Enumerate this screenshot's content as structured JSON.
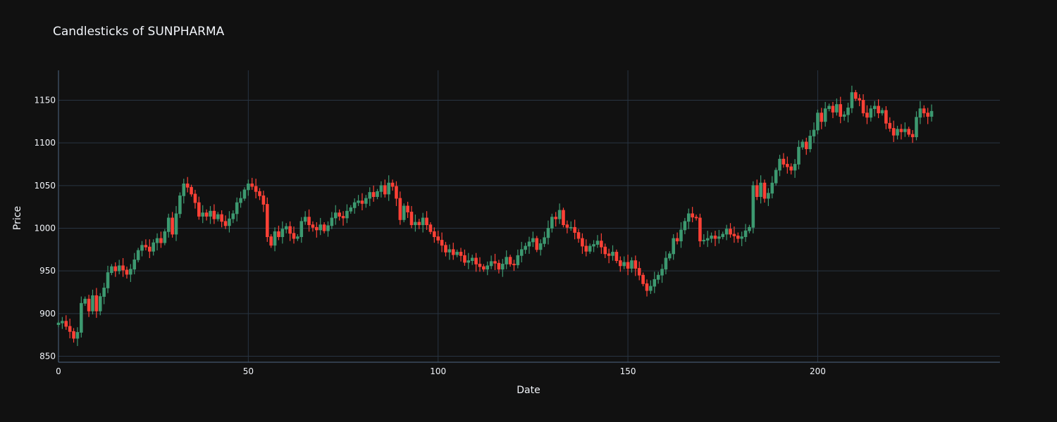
{
  "chart_data": {
    "type": "candlestick",
    "title": "Candlesticks of SUNPHARMA",
    "xlabel": "Date",
    "ylabel": "Price",
    "xlim": [
      0,
      248
    ],
    "ylim": [
      843,
      1185
    ],
    "x_ticks": [
      0,
      50,
      100,
      150,
      200
    ],
    "y_ticks": [
      850,
      900,
      950,
      1000,
      1050,
      1100,
      1150
    ],
    "grid": true,
    "colors": {
      "background": "#111111",
      "increasing": "#3d9970",
      "decreasing": "#ff4136",
      "grid": "#283442",
      "text": "#f2f5fa"
    },
    "closes": [
      889,
      891,
      885,
      879,
      871,
      878,
      912,
      917,
      903,
      921,
      903,
      920,
      930,
      948,
      955,
      950,
      956,
      951,
      946,
      952,
      963,
      974,
      980,
      978,
      973,
      983,
      988,
      983,
      996,
      1012,
      993,
      1017,
      1038,
      1052,
      1048,
      1040,
      1030,
      1014,
      1018,
      1014,
      1020,
      1011,
      1016,
      1008,
      1003,
      1011,
      1017,
      1030,
      1035,
      1045,
      1052,
      1049,
      1043,
      1038,
      1028,
      990,
      980,
      996,
      990,
      999,
      1002,
      994,
      988,
      990,
      1008,
      1013,
      1004,
      1001,
      998,
      1004,
      997,
      1003,
      1012,
      1018,
      1014,
      1012,
      1020,
      1024,
      1030,
      1032,
      1029,
      1035,
      1042,
      1037,
      1043,
      1050,
      1040,
      1053,
      1049,
      1035,
      1010,
      1026,
      1019,
      1004,
      1007,
      1004,
      1012,
      1004,
      996,
      990,
      986,
      980,
      972,
      975,
      969,
      972,
      968,
      960,
      962,
      965,
      958,
      955,
      952,
      956,
      961,
      959,
      952,
      958,
      966,
      958,
      957,
      968,
      975,
      979,
      984,
      988,
      975,
      982,
      989,
      1000,
      1013,
      1011,
      1021,
      1004,
      1001,
      1001,
      995,
      988,
      979,
      973,
      979,
      981,
      985,
      978,
      970,
      968,
      972,
      962,
      956,
      960,
      953,
      962,
      953,
      945,
      935,
      927,
      932,
      940,
      945,
      952,
      965,
      970,
      988,
      985,
      998,
      1008,
      1017,
      1013,
      1012,
      985,
      986,
      988,
      991,
      988,
      990,
      993,
      999,
      993,
      991,
      988,
      990,
      997,
      1001,
      1050,
      1037,
      1053,
      1035,
      1041,
      1053,
      1068,
      1081,
      1075,
      1072,
      1068,
      1075,
      1095,
      1101,
      1093,
      1108,
      1115,
      1135,
      1125,
      1140,
      1143,
      1136,
      1145,
      1131,
      1133,
      1141,
      1159,
      1152,
      1150,
      1135,
      1130,
      1140,
      1143,
      1135,
      1138,
      1123,
      1117,
      1109,
      1116,
      1113,
      1116,
      1110,
      1107,
      1130,
      1140,
      1135,
      1131,
      1137
    ]
  }
}
